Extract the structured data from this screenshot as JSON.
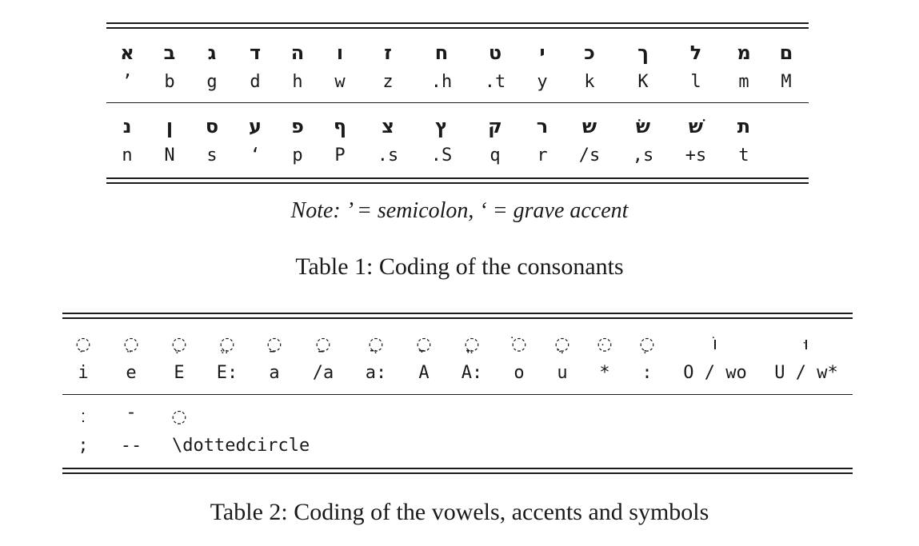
{
  "table1": {
    "row1": {
      "hebrew": [
        "א",
        "ב",
        "ג",
        "ד",
        "ה",
        "ו",
        "ז",
        "ח",
        "ט",
        "י",
        "כ",
        "ך",
        "ל",
        "מ",
        "ם"
      ],
      "codes": [
        "’",
        "b",
        "g",
        "d",
        "h",
        "w",
        "z",
        ".h",
        ".t",
        "y",
        "k",
        "K",
        "l",
        "m",
        "M"
      ]
    },
    "row2": {
      "hebrew": [
        "נ",
        "ן",
        "ס",
        "ע",
        "פ",
        "ף",
        "צ",
        "ץ",
        "ק",
        "ר",
        "ש",
        "שׂ",
        "שׁ",
        "ת"
      ],
      "codes": [
        "n",
        "N",
        "s",
        "‘",
        "p",
        "P",
        ".s",
        ".S",
        "q",
        "r",
        "/s",
        ",s",
        "+s",
        "t"
      ]
    },
    "note": "Note: ’ = semicolon, ‘ = grave accent",
    "caption": "Table 1: Coding of the consonants"
  },
  "table2": {
    "row1": {
      "symbols": [
        "◌ִ",
        "◌ֵ",
        "◌ֶ",
        "◌ֱ",
        "◌ַ",
        "◌ַ",
        "◌ֲ",
        "◌ָ",
        "◌ֳ",
        "◌ֹ",
        "◌ֻ",
        "◌ּ",
        "◌ְ",
        "וֹ",
        "וּ"
      ],
      "codes": [
        "i",
        "e",
        "E",
        "E:",
        "a",
        "/a",
        "a:",
        "A",
        "A:",
        "o",
        "u",
        "*",
        ":",
        "O / wo",
        "U / w*"
      ]
    },
    "row2": {
      "symbols": [
        "׃",
        "־",
        "◌"
      ],
      "codes": [
        ";",
        "--",
        "\\dottedcircle"
      ]
    },
    "caption": "Table 2: Coding of the vowels, accents and symbols"
  }
}
